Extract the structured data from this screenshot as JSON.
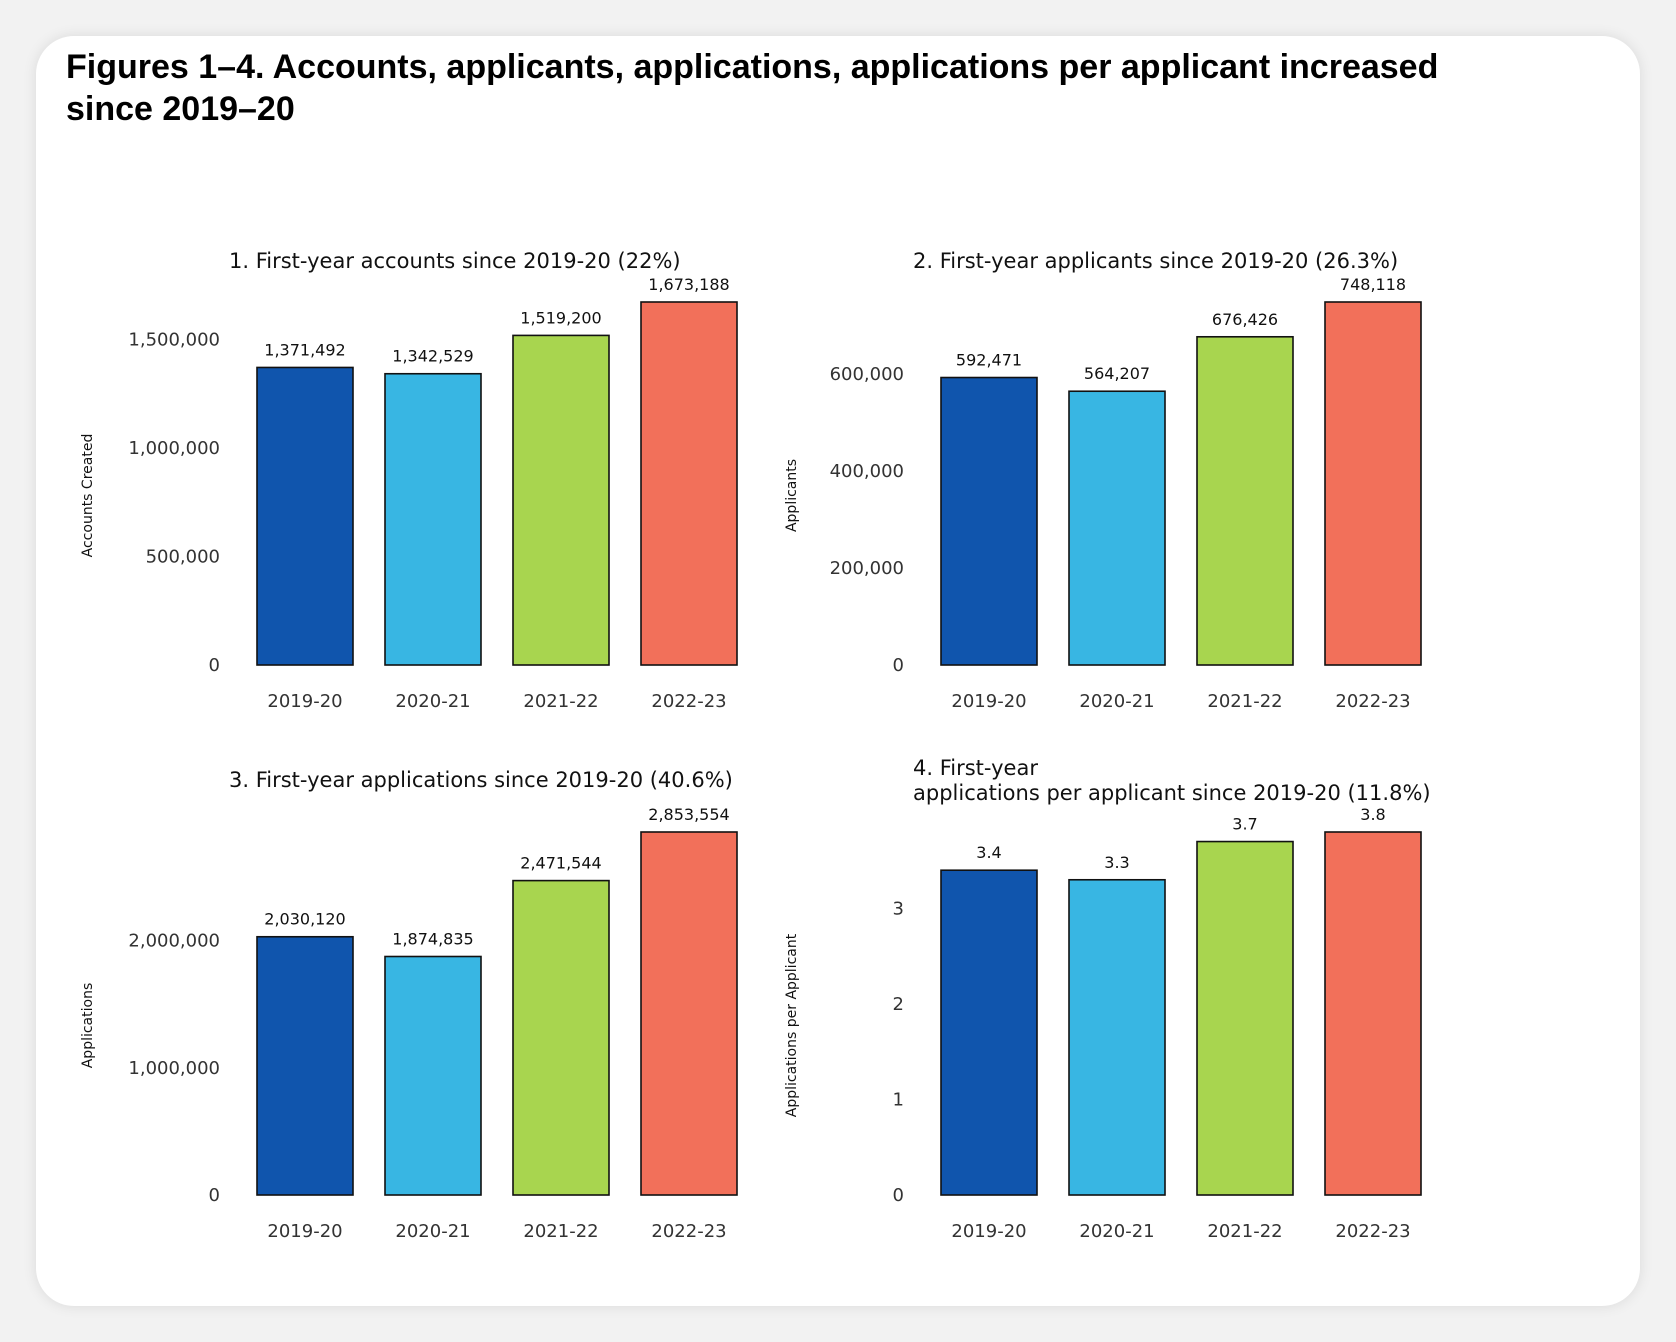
{
  "figure": {
    "title": "Figures 1–4. Accounts, applicants, applications, applications per applicant increased\nsince 2019–20"
  },
  "colors": [
    "#1055ad",
    "#38b6e3",
    "#a8d54f",
    "#f2705a"
  ],
  "chart_data": [
    {
      "type": "bar",
      "title": "1. First-year accounts since 2019-20 (22%)",
      "ylabel": "Accounts Created",
      "xlabel": "",
      "categories": [
        "2019-20",
        "2020-21",
        "2021-22",
        "2022-23"
      ],
      "values": [
        1371492,
        1342529,
        1519200,
        1673188
      ],
      "value_labels": [
        "1,371,492",
        "1,342,529",
        "1,519,200",
        "1,673,188"
      ],
      "yticks": [
        0,
        500000,
        1000000,
        1500000
      ],
      "ytick_labels": [
        "0",
        "500,000",
        "1,000,000",
        "1,500,000"
      ],
      "ylim": [
        0,
        1673188
      ]
    },
    {
      "type": "bar",
      "title": "2. First-year applicants since 2019-20 (26.3%)",
      "ylabel": "Applicants",
      "xlabel": "",
      "categories": [
        "2019-20",
        "2020-21",
        "2021-22",
        "2022-23"
      ],
      "values": [
        592471,
        564207,
        676426,
        748118
      ],
      "value_labels": [
        "592,471",
        "564,207",
        "676,426",
        "748,118"
      ],
      "yticks": [
        0,
        200000,
        400000,
        600000
      ],
      "ytick_labels": [
        "0",
        "200,000",
        "400,000",
        "600,000"
      ],
      "ylim": [
        0,
        748118
      ]
    },
    {
      "type": "bar",
      "title": "3. First-year applications since 2019-20 (40.6%)",
      "ylabel": "Applications",
      "xlabel": "",
      "categories": [
        "2019-20",
        "2020-21",
        "2021-22",
        "2022-23"
      ],
      "values": [
        2030120,
        1874835,
        2471544,
        2853554
      ],
      "value_labels": [
        "2,030,120",
        "1,874,835",
        "2,471,544",
        "2,853,554"
      ],
      "yticks": [
        0,
        1000000,
        2000000
      ],
      "ytick_labels": [
        "0",
        "1,000,000",
        "2,000,000"
      ],
      "ylim": [
        0,
        2853554
      ]
    },
    {
      "type": "bar",
      "title": "4. First-year\napplications per applicant since 2019-20 (11.8%)",
      "ylabel": "Applications per Applicant",
      "xlabel": "",
      "categories": [
        "2019-20",
        "2020-21",
        "2021-22",
        "2022-23"
      ],
      "values": [
        3.4,
        3.3,
        3.7,
        3.8
      ],
      "value_labels": [
        "3.4",
        "3.3",
        "3.7",
        "3.8"
      ],
      "yticks": [
        0,
        1,
        2,
        3
      ],
      "ytick_labels": [
        "0",
        "1",
        "2",
        "3"
      ],
      "ylim": [
        0,
        3.8
      ]
    }
  ]
}
